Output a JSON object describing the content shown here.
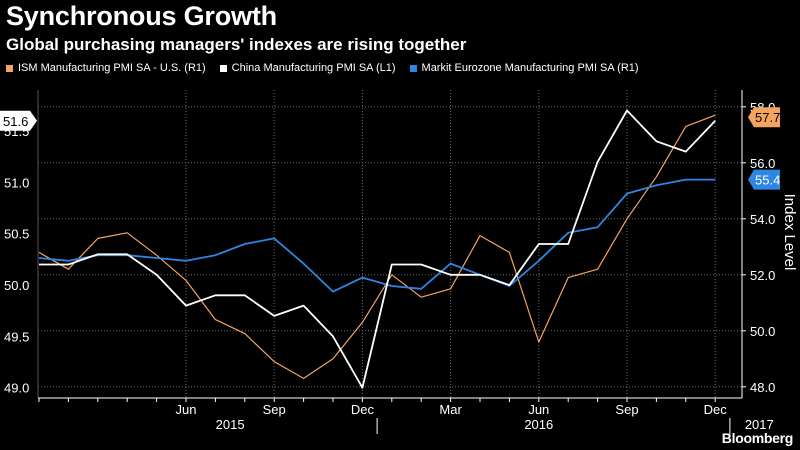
{
  "chart_data": {
    "type": "line",
    "title": "Synchronous Growth",
    "subtitle": "Global purchasing managers' indexes are rising together",
    "source": "Bloomberg",
    "x_tick_labels": [
      "Jun",
      "Sep",
      "Dec",
      "Mar",
      "Jun",
      "Sep",
      "Dec"
    ],
    "x_tick_positions": [
      5,
      8,
      11,
      14,
      17,
      20,
      23
    ],
    "year_labels": [
      {
        "label": "2015",
        "center": 6.5
      },
      {
        "label": "2016",
        "center": 17.0
      },
      {
        "label": "2017",
        "center": 24.5
      }
    ],
    "year_dividers": [
      11.5,
      23.5
    ],
    "left_axis": {
      "label": "",
      "min": 48.9,
      "max": 51.9,
      "ticks": [
        "49.0",
        "49.5",
        "50.0",
        "50.5",
        "51.0",
        "51.5"
      ]
    },
    "right_axis": {
      "label": "Index Level",
      "min": 47.6,
      "max": 58.6,
      "ticks": [
        "48.0",
        "50.0",
        "52.0",
        "54.0",
        "56.0",
        "58.0"
      ]
    },
    "series": [
      {
        "name": "ISM Manufacturing PMI SA - U.S. (R1)",
        "axis": "right",
        "color": "#f4a460",
        "last_label": "57.7",
        "values": [
          52.8,
          52.2,
          53.3,
          53.5,
          52.7,
          51.8,
          50.4,
          49.9,
          48.9,
          48.3,
          49.0,
          50.3,
          52.0,
          51.2,
          51.5,
          53.4,
          52.8,
          49.6,
          51.9,
          52.2,
          54.0,
          55.5,
          57.3,
          57.7
        ],
        "note_last": "57.7"
      },
      {
        "name": "China Manufacturing PMI SA (L1)",
        "axis": "left",
        "color": "#ffffff",
        "last_label": "51.6",
        "values": [
          50.2,
          50.2,
          50.3,
          50.3,
          50.1,
          49.8,
          49.9,
          49.9,
          49.7,
          49.8,
          49.5,
          49.0,
          50.2,
          50.2,
          50.1,
          50.1,
          50.0,
          50.4,
          50.4,
          51.2,
          51.7,
          51.4,
          51.3,
          51.6
        ],
        "note_last": "51.6"
      },
      {
        "name": "Markit Eurozone Manufacturing PMI SA (R1)",
        "axis": "right",
        "color": "#2e86e0",
        "last_label": "55.4",
        "values": [
          52.6,
          52.5,
          52.7,
          52.7,
          52.6,
          52.5,
          52.7,
          53.1,
          53.3,
          52.4,
          51.4,
          51.9,
          51.6,
          51.5,
          52.4,
          52.0,
          51.6,
          52.5,
          53.5,
          53.7,
          54.9,
          55.2,
          55.4,
          55.4
        ],
        "note_last": "55.4"
      }
    ],
    "grid": true
  }
}
